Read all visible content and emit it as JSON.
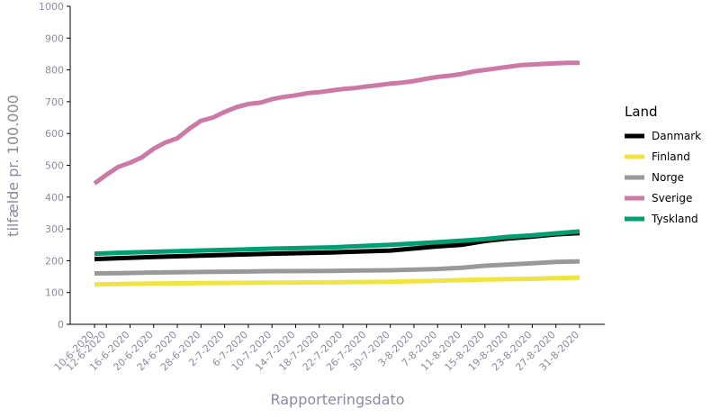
{
  "chart_data": {
    "type": "line",
    "xlabel": "Rapporteringsdato",
    "ylabel": "tilfælde pr. 100.000",
    "ylim": [
      0,
      1000
    ],
    "yticks": [
      0,
      100,
      200,
      300,
      400,
      500,
      600,
      700,
      800,
      900,
      1000
    ],
    "grid": false,
    "legend_position": "right",
    "legend_title": "Land",
    "x_day_range": [
      0,
      82
    ],
    "xticks": [
      {
        "day": 0,
        "label": "10-6-2020"
      },
      {
        "day": 2,
        "label": "12-6-2020"
      },
      {
        "day": 6,
        "label": "16-6-2020"
      },
      {
        "day": 10,
        "label": "20-6-2020"
      },
      {
        "day": 14,
        "label": "24-6-2020"
      },
      {
        "day": 18,
        "label": "28-6-2020"
      },
      {
        "day": 22,
        "label": "2-7-2020"
      },
      {
        "day": 26,
        "label": "6-7-2020"
      },
      {
        "day": 30,
        "label": "10-7-2020"
      },
      {
        "day": 34,
        "label": "14-7-2020"
      },
      {
        "day": 38,
        "label": "18-7-2020"
      },
      {
        "day": 42,
        "label": "22-7-2020"
      },
      {
        "day": 46,
        "label": "26-7-2020"
      },
      {
        "day": 50,
        "label": "30-7-2020"
      },
      {
        "day": 54,
        "label": "3-8-2020"
      },
      {
        "day": 58,
        "label": "7-8-2020"
      },
      {
        "day": 62,
        "label": "11-8-2020"
      },
      {
        "day": 66,
        "label": "15-8-2020"
      },
      {
        "day": 70,
        "label": "19-8-2020"
      },
      {
        "day": 74,
        "label": "23-8-2020"
      },
      {
        "day": 78,
        "label": "27-8-2020"
      },
      {
        "day": 82,
        "label": "31-8-2020"
      }
    ],
    "series": [
      {
        "name": "Danmark",
        "color": "#000000",
        "points": [
          [
            0,
            205
          ],
          [
            4,
            208
          ],
          [
            10,
            212
          ],
          [
            20,
            217
          ],
          [
            30,
            222
          ],
          [
            40,
            226
          ],
          [
            50,
            232
          ],
          [
            58,
            245
          ],
          [
            62,
            250
          ],
          [
            66,
            262
          ],
          [
            70,
            270
          ],
          [
            74,
            276
          ],
          [
            78,
            283
          ],
          [
            82,
            287
          ]
        ]
      },
      {
        "name": "Finland",
        "color": "#f0e442",
        "points": [
          [
            0,
            125
          ],
          [
            4,
            127
          ],
          [
            10,
            128
          ],
          [
            20,
            130
          ],
          [
            30,
            131
          ],
          [
            40,
            132
          ],
          [
            50,
            134
          ],
          [
            58,
            137
          ],
          [
            62,
            139
          ],
          [
            66,
            141
          ],
          [
            70,
            142
          ],
          [
            74,
            143
          ],
          [
            78,
            145
          ],
          [
            82,
            147
          ]
        ]
      },
      {
        "name": "Norge",
        "color": "#999999",
        "points": [
          [
            0,
            160
          ],
          [
            4,
            161
          ],
          [
            10,
            163
          ],
          [
            20,
            165
          ],
          [
            30,
            167
          ],
          [
            40,
            168
          ],
          [
            50,
            170
          ],
          [
            58,
            174
          ],
          [
            62,
            178
          ],
          [
            66,
            184
          ],
          [
            70,
            188
          ],
          [
            74,
            192
          ],
          [
            78,
            196
          ],
          [
            82,
            198
          ]
        ]
      },
      {
        "name": "Sverige",
        "color": "#cc79a7",
        "points": [
          [
            0,
            443
          ],
          [
            2,
            470
          ],
          [
            4,
            495
          ],
          [
            6,
            508
          ],
          [
            8,
            525
          ],
          [
            10,
            552
          ],
          [
            12,
            572
          ],
          [
            14,
            585
          ],
          [
            16,
            615
          ],
          [
            18,
            640
          ],
          [
            20,
            650
          ],
          [
            22,
            668
          ],
          [
            24,
            683
          ],
          [
            26,
            693
          ],
          [
            28,
            697
          ],
          [
            30,
            708
          ],
          [
            32,
            715
          ],
          [
            34,
            720
          ],
          [
            36,
            727
          ],
          [
            38,
            730
          ],
          [
            40,
            735
          ],
          [
            42,
            740
          ],
          [
            44,
            743
          ],
          [
            46,
            748
          ],
          [
            48,
            752
          ],
          [
            50,
            757
          ],
          [
            52,
            760
          ],
          [
            54,
            765
          ],
          [
            56,
            772
          ],
          [
            58,
            778
          ],
          [
            60,
            782
          ],
          [
            62,
            787
          ],
          [
            64,
            795
          ],
          [
            66,
            800
          ],
          [
            68,
            805
          ],
          [
            70,
            810
          ],
          [
            72,
            815
          ],
          [
            74,
            817
          ],
          [
            76,
            819
          ],
          [
            78,
            821
          ],
          [
            80,
            822
          ],
          [
            82,
            822
          ]
        ]
      },
      {
        "name": "Tyskland",
        "color": "#009e73",
        "points": [
          [
            0,
            222
          ],
          [
            4,
            225
          ],
          [
            10,
            228
          ],
          [
            20,
            233
          ],
          [
            30,
            238
          ],
          [
            40,
            242
          ],
          [
            50,
            250
          ],
          [
            58,
            258
          ],
          [
            62,
            263
          ],
          [
            66,
            268
          ],
          [
            70,
            275
          ],
          [
            74,
            280
          ],
          [
            78,
            286
          ],
          [
            82,
            292
          ]
        ]
      }
    ]
  }
}
